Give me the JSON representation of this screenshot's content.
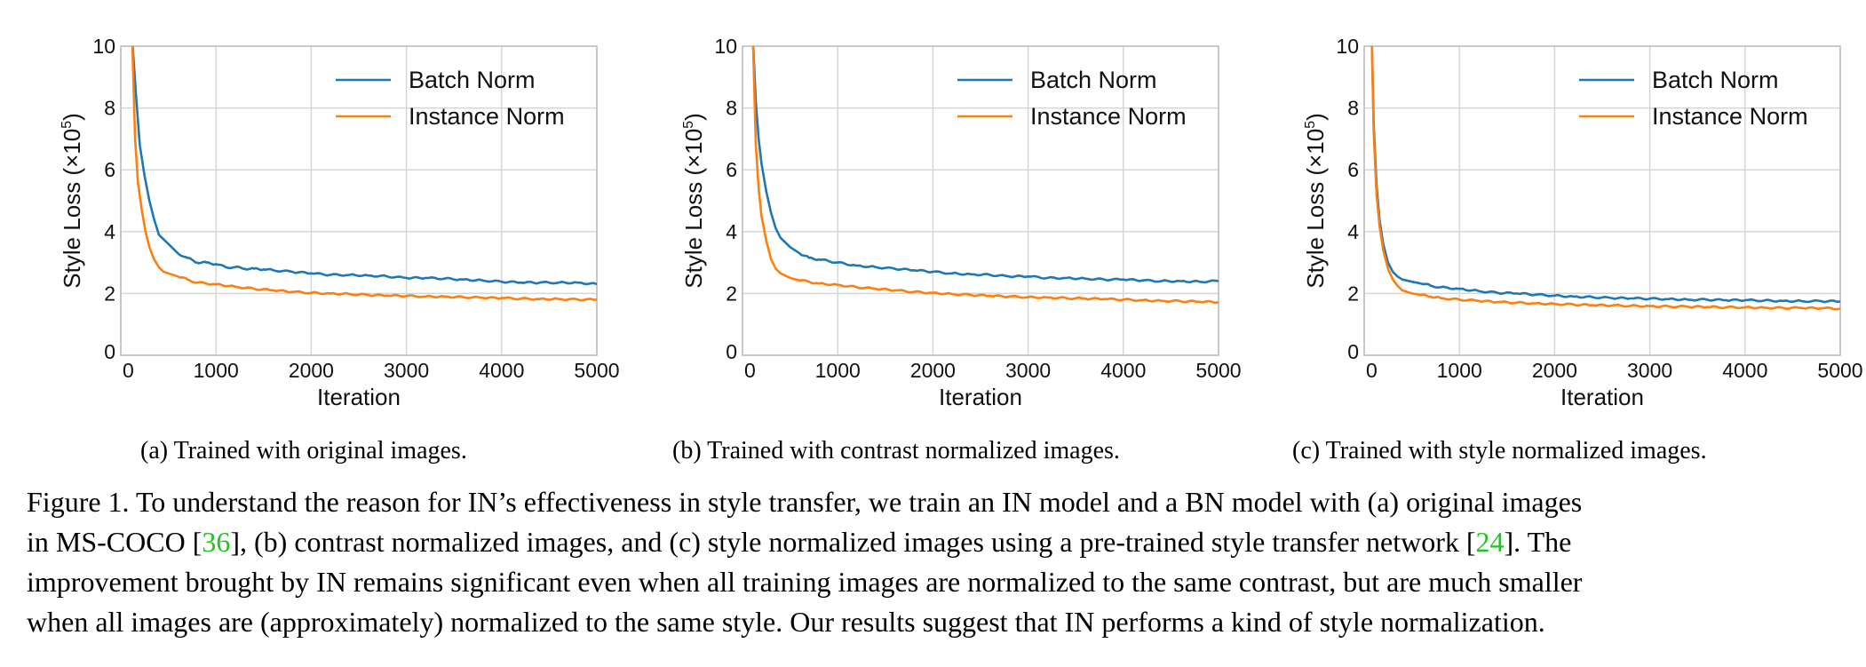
{
  "chart_data": [
    {
      "type": "line",
      "xlabel": "Iteration",
      "ylabel": "Style Loss (×10",
      "ylabel_exp": "5",
      "ylabel_close": ")",
      "xlim": [
        0,
        5000
      ],
      "ylim": [
        0,
        10
      ],
      "xticks": [
        "0",
        "1000",
        "2000",
        "3000",
        "4000",
        "5000"
      ],
      "yticks": [
        "0",
        "2",
        "4",
        "6",
        "8",
        "10"
      ],
      "grid": true,
      "legend_position": "top-right",
      "series": [
        {
          "name": "Batch Norm",
          "color": "#1f77b4",
          "points": [
            [
              120,
              10.2
            ],
            [
              160,
              8.4
            ],
            [
              200,
              6.8
            ],
            [
              250,
              5.8
            ],
            [
              300,
              5.0
            ],
            [
              350,
              4.4
            ],
            [
              400,
              3.9
            ],
            [
              500,
              3.6
            ],
            [
              600,
              3.3
            ],
            [
              700,
              3.15
            ],
            [
              800,
              3.0
            ],
            [
              900,
              3.0
            ],
            [
              1000,
              2.95
            ],
            [
              1100,
              2.85
            ],
            [
              1200,
              2.85
            ],
            [
              1300,
              2.8
            ],
            [
              1400,
              2.8
            ],
            [
              1500,
              2.78
            ],
            [
              1600,
              2.75
            ],
            [
              1800,
              2.7
            ],
            [
              2000,
              2.65
            ],
            [
              2200,
              2.6
            ],
            [
              2400,
              2.6
            ],
            [
              2600,
              2.58
            ],
            [
              2800,
              2.55
            ],
            [
              3000,
              2.5
            ],
            [
              3200,
              2.5
            ],
            [
              3400,
              2.48
            ],
            [
              3600,
              2.45
            ],
            [
              3800,
              2.42
            ],
            [
              4000,
              2.38
            ],
            [
              4200,
              2.35
            ],
            [
              4400,
              2.35
            ],
            [
              4600,
              2.35
            ],
            [
              4800,
              2.35
            ],
            [
              5000,
              2.3
            ]
          ]
        },
        {
          "name": "Instance Norm",
          "color": "#ff7f0e",
          "points": [
            [
              120,
              10.2
            ],
            [
              150,
              7.0
            ],
            [
              180,
              5.6
            ],
            [
              220,
              4.7
            ],
            [
              260,
              4.0
            ],
            [
              300,
              3.5
            ],
            [
              350,
              3.1
            ],
            [
              400,
              2.85
            ],
            [
              450,
              2.7
            ],
            [
              500,
              2.65
            ],
            [
              600,
              2.55
            ],
            [
              700,
              2.45
            ],
            [
              800,
              2.35
            ],
            [
              1000,
              2.3
            ],
            [
              1200,
              2.22
            ],
            [
              1400,
              2.15
            ],
            [
              1600,
              2.1
            ],
            [
              1800,
              2.05
            ],
            [
              2000,
              2.02
            ],
            [
              2200,
              2.0
            ],
            [
              2400,
              1.98
            ],
            [
              2600,
              1.95
            ],
            [
              2800,
              1.93
            ],
            [
              3000,
              1.92
            ],
            [
              3200,
              1.9
            ],
            [
              3400,
              1.9
            ],
            [
              3600,
              1.88
            ],
            [
              3800,
              1.86
            ],
            [
              4000,
              1.85
            ],
            [
              4200,
              1.83
            ],
            [
              4400,
              1.82
            ],
            [
              4600,
              1.82
            ],
            [
              4800,
              1.8
            ],
            [
              5000,
              1.8
            ]
          ]
        }
      ]
    },
    {
      "type": "line",
      "xlabel": "Iteration",
      "ylabel": "Style Loss (×10",
      "ylabel_exp": "5",
      "ylabel_close": ")",
      "xlim": [
        0,
        5000
      ],
      "ylim": [
        0,
        10
      ],
      "xticks": [
        "0",
        "1000",
        "2000",
        "3000",
        "4000",
        "5000"
      ],
      "yticks": [
        "0",
        "2",
        "4",
        "6",
        "8",
        "10"
      ],
      "grid": true,
      "legend_position": "top-right",
      "series": [
        {
          "name": "Batch Norm",
          "color": "#1f77b4",
          "points": [
            [
              110,
              10.2
            ],
            [
              140,
              8.2
            ],
            [
              170,
              7.0
            ],
            [
              200,
              6.2
            ],
            [
              250,
              5.3
            ],
            [
              300,
              4.6
            ],
            [
              350,
              4.1
            ],
            [
              400,
              3.8
            ],
            [
              500,
              3.5
            ],
            [
              600,
              3.3
            ],
            [
              700,
              3.15
            ],
            [
              800,
              3.1
            ],
            [
              900,
              3.05
            ],
            [
              1000,
              3.0
            ],
            [
              1200,
              2.9
            ],
            [
              1400,
              2.85
            ],
            [
              1600,
              2.8
            ],
            [
              1800,
              2.75
            ],
            [
              2000,
              2.7
            ],
            [
              2200,
              2.65
            ],
            [
              2400,
              2.62
            ],
            [
              2600,
              2.6
            ],
            [
              2800,
              2.55
            ],
            [
              3000,
              2.55
            ],
            [
              3200,
              2.5
            ],
            [
              3400,
              2.5
            ],
            [
              3600,
              2.48
            ],
            [
              3800,
              2.45
            ],
            [
              4000,
              2.45
            ],
            [
              4200,
              2.42
            ],
            [
              4400,
              2.4
            ],
            [
              4600,
              2.4
            ],
            [
              4800,
              2.38
            ],
            [
              5000,
              2.4
            ]
          ]
        },
        {
          "name": "Instance Norm",
          "color": "#ff7f0e",
          "points": [
            [
              110,
              10.2
            ],
            [
              140,
              6.8
            ],
            [
              170,
              5.4
            ],
            [
              200,
              4.5
            ],
            [
              250,
              3.7
            ],
            [
              300,
              3.1
            ],
            [
              350,
              2.8
            ],
            [
              400,
              2.65
            ],
            [
              500,
              2.5
            ],
            [
              600,
              2.42
            ],
            [
              700,
              2.38
            ],
            [
              800,
              2.32
            ],
            [
              1000,
              2.28
            ],
            [
              1200,
              2.2
            ],
            [
              1400,
              2.15
            ],
            [
              1600,
              2.1
            ],
            [
              1800,
              2.05
            ],
            [
              2000,
              2.02
            ],
            [
              2200,
              1.98
            ],
            [
              2400,
              1.95
            ],
            [
              2600,
              1.92
            ],
            [
              2800,
              1.9
            ],
            [
              3000,
              1.88
            ],
            [
              3200,
              1.87
            ],
            [
              3400,
              1.85
            ],
            [
              3600,
              1.83
            ],
            [
              3800,
              1.82
            ],
            [
              4000,
              1.8
            ],
            [
              4200,
              1.78
            ],
            [
              4400,
              1.76
            ],
            [
              4600,
              1.75
            ],
            [
              4800,
              1.73
            ],
            [
              5000,
              1.72
            ]
          ]
        }
      ]
    },
    {
      "type": "line",
      "xlabel": "Iteration",
      "ylabel": "Style Loss (×10",
      "ylabel_exp": "5",
      "ylabel_close": ")",
      "xlim": [
        0,
        5000
      ],
      "ylim": [
        0,
        10
      ],
      "xticks": [
        "0",
        "1000",
        "2000",
        "3000",
        "4000",
        "5000"
      ],
      "yticks": [
        "0",
        "2",
        "4",
        "6",
        "8",
        "10"
      ],
      "grid": true,
      "legend_position": "top-right",
      "series": [
        {
          "name": "Batch Norm",
          "color": "#1f77b4",
          "points": [
            [
              80,
              10.2
            ],
            [
              100,
              7.5
            ],
            [
              130,
              5.5
            ],
            [
              160,
              4.4
            ],
            [
              200,
              3.6
            ],
            [
              250,
              3.0
            ],
            [
              300,
              2.7
            ],
            [
              350,
              2.55
            ],
            [
              400,
              2.45
            ],
            [
              500,
              2.38
            ],
            [
              600,
              2.32
            ],
            [
              700,
              2.25
            ],
            [
              800,
              2.2
            ],
            [
              1000,
              2.15
            ],
            [
              1200,
              2.08
            ],
            [
              1400,
              2.02
            ],
            [
              1600,
              2.0
            ],
            [
              1800,
              1.96
            ],
            [
              2000,
              1.93
            ],
            [
              2200,
              1.9
            ],
            [
              2400,
              1.88
            ],
            [
              2600,
              1.85
            ],
            [
              2800,
              1.84
            ],
            [
              3000,
              1.83
            ],
            [
              3200,
              1.82
            ],
            [
              3400,
              1.8
            ],
            [
              3600,
              1.8
            ],
            [
              3800,
              1.78
            ],
            [
              4000,
              1.78
            ],
            [
              4200,
              1.77
            ],
            [
              4400,
              1.76
            ],
            [
              4600,
              1.75
            ],
            [
              4800,
              1.75
            ],
            [
              5000,
              1.74
            ]
          ]
        },
        {
          "name": "Instance Norm",
          "color": "#ff7f0e",
          "points": [
            [
              80,
              10.2
            ],
            [
              100,
              7.2
            ],
            [
              130,
              5.2
            ],
            [
              160,
              4.2
            ],
            [
              200,
              3.4
            ],
            [
              250,
              2.8
            ],
            [
              300,
              2.45
            ],
            [
              350,
              2.25
            ],
            [
              400,
              2.1
            ],
            [
              500,
              2.0
            ],
            [
              600,
              1.95
            ],
            [
              700,
              1.9
            ],
            [
              800,
              1.85
            ],
            [
              1000,
              1.8
            ],
            [
              1200,
              1.76
            ],
            [
              1400,
              1.72
            ],
            [
              1600,
              1.7
            ],
            [
              1800,
              1.68
            ],
            [
              2000,
              1.66
            ],
            [
              2200,
              1.64
            ],
            [
              2400,
              1.62
            ],
            [
              2600,
              1.61
            ],
            [
              2800,
              1.6
            ],
            [
              3000,
              1.59
            ],
            [
              3200,
              1.58
            ],
            [
              3400,
              1.57
            ],
            [
              3600,
              1.56
            ],
            [
              3800,
              1.55
            ],
            [
              4000,
              1.55
            ],
            [
              4200,
              1.54
            ],
            [
              4400,
              1.53
            ],
            [
              4600,
              1.53
            ],
            [
              4800,
              1.52
            ],
            [
              5000,
              1.51
            ]
          ]
        }
      ]
    }
  ],
  "captions": {
    "a": "(a)  Trained with original images.",
    "b": "(b)  Trained with contrast normalized images.",
    "c": "(c)  Trained with style normalized images."
  },
  "figure_caption": {
    "line1": "Figure 1. To understand the reason for IN’s effectiveness in style transfer, we train an IN model and a BN model with (a) original images",
    "line2_pre": "in MS-COCO [",
    "line2_cite1": "36",
    "line2_mid": "], (b) contrast normalized images, and (c) style normalized images using a pre-trained style transfer network [",
    "line2_cite2": "24",
    "line2_post": "].  The",
    "line3": "improvement brought by IN remains significant even when all training images are normalized to the same contrast, but are much smaller",
    "line4": "when all images are (approximately) normalized to the same style. Our results suggest that IN performs a kind of style normalization."
  }
}
